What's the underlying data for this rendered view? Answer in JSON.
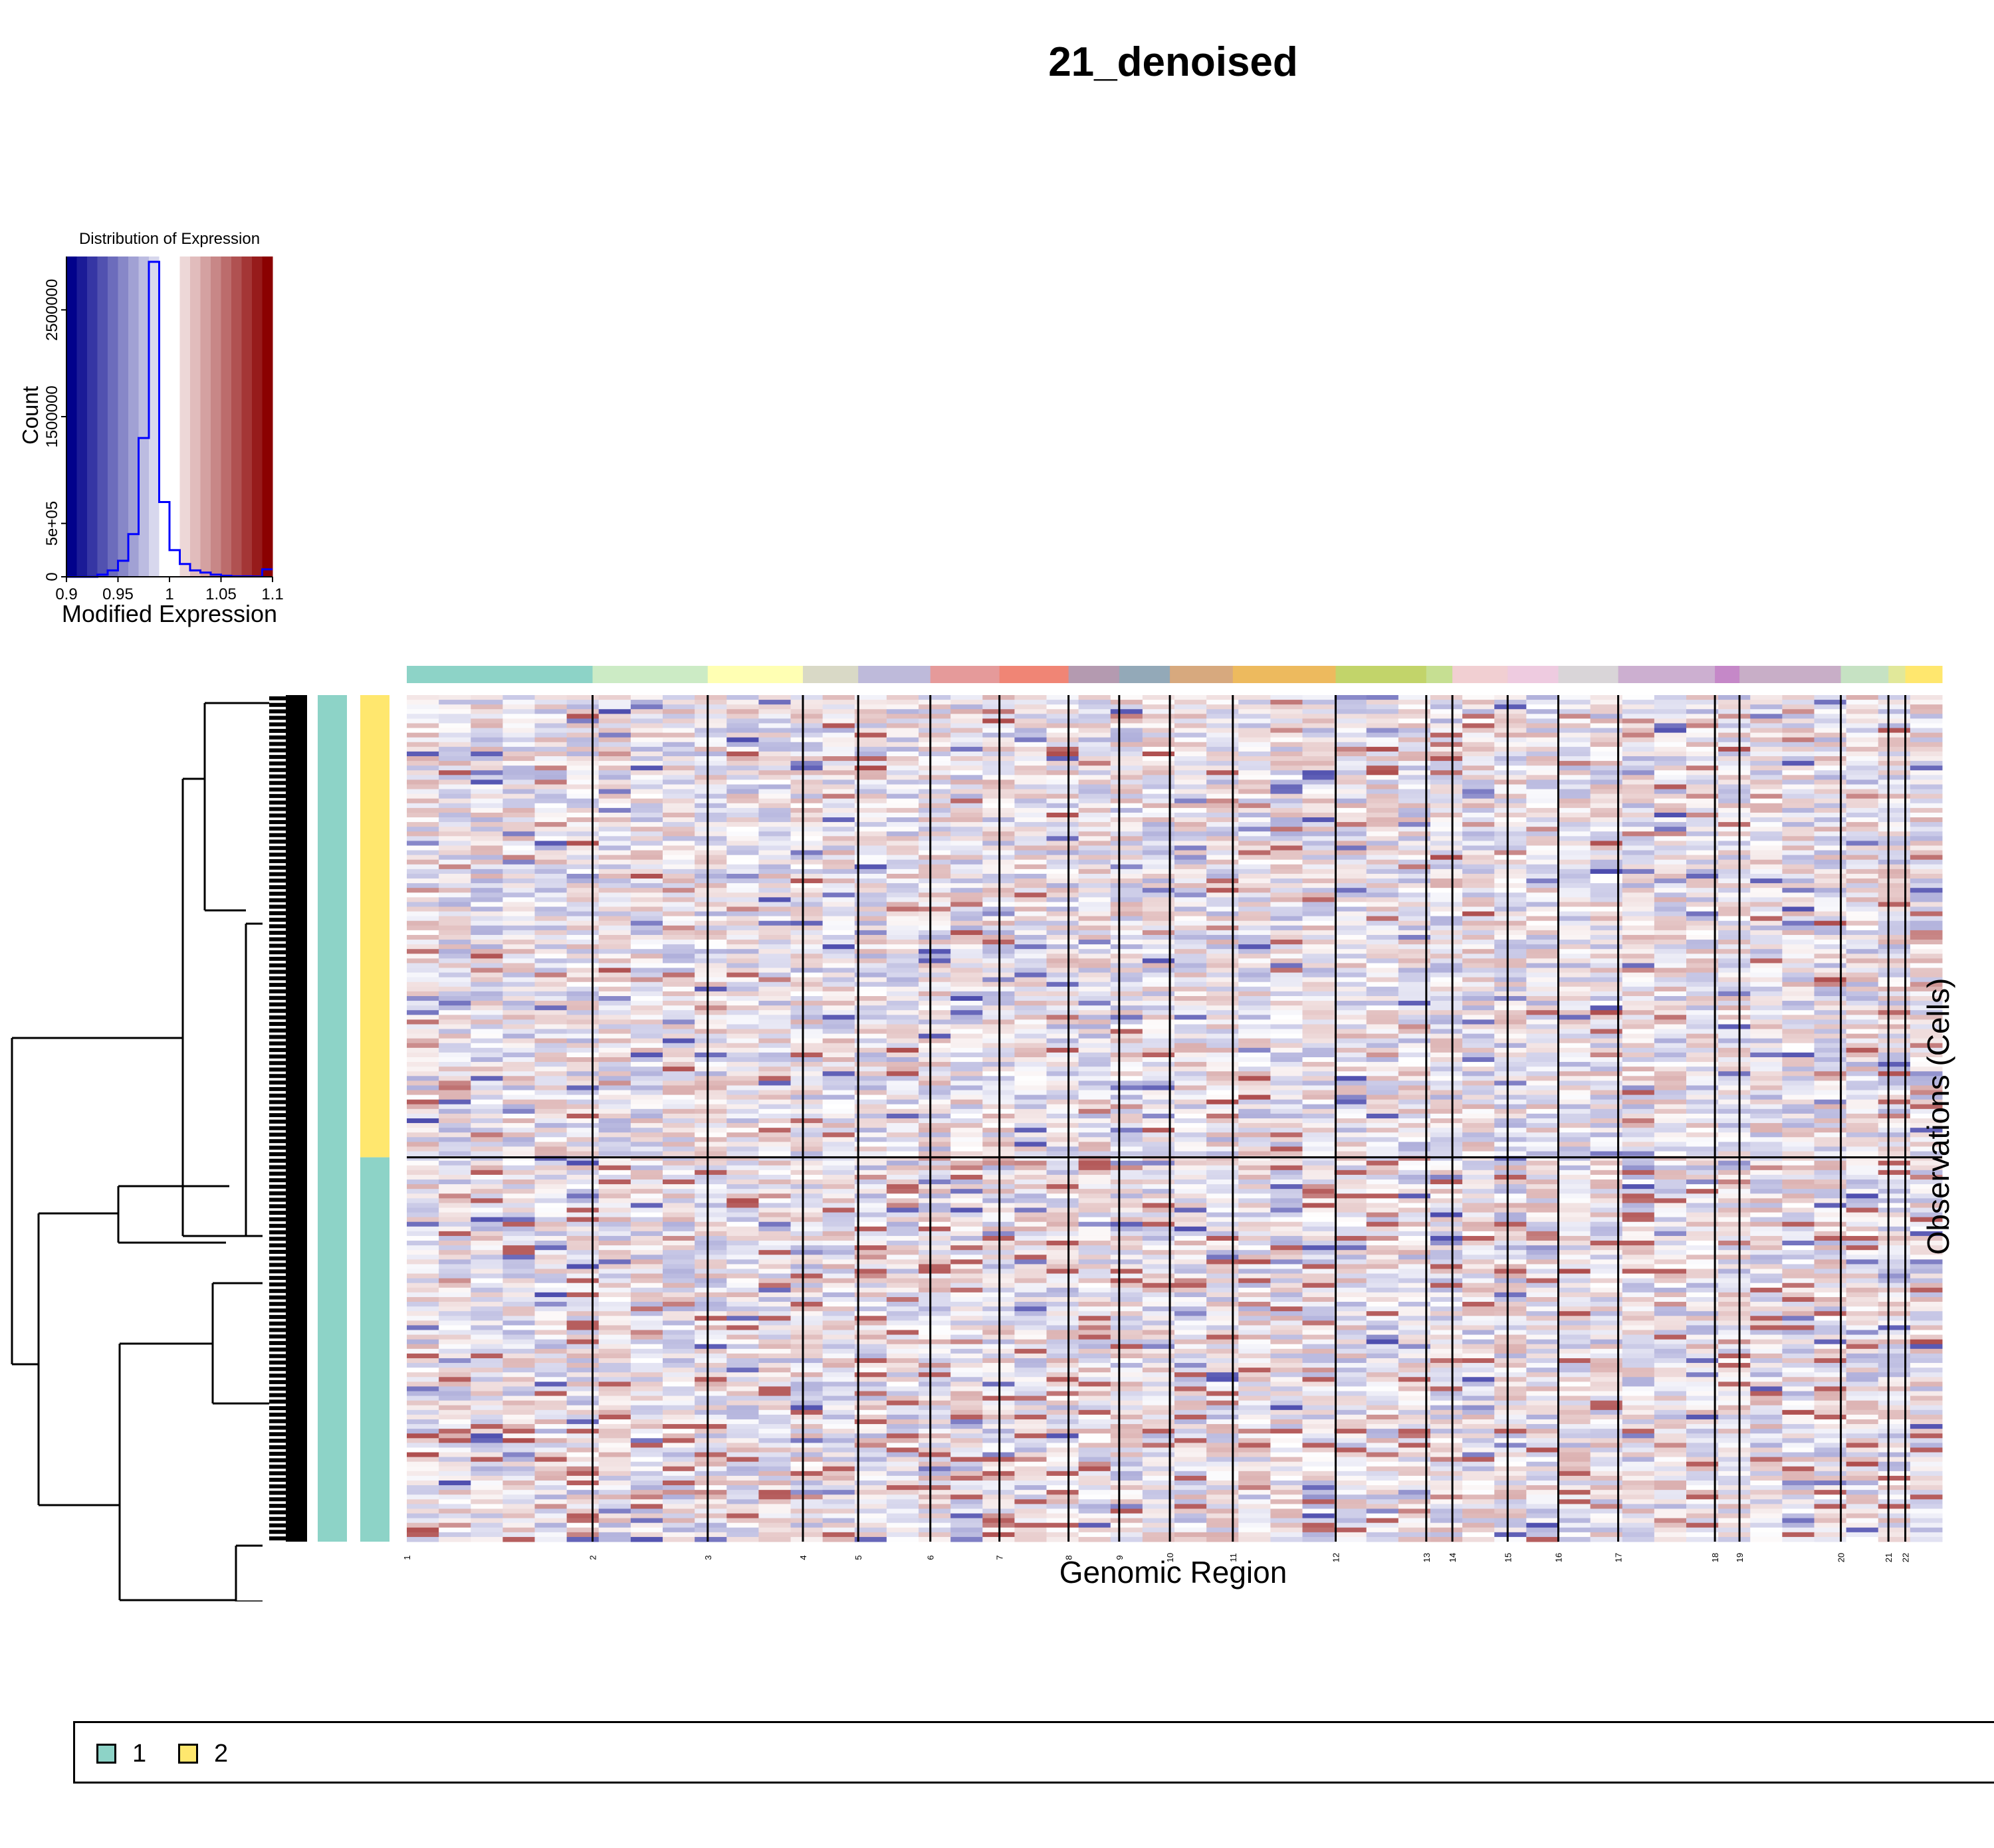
{
  "title": "21_denoised",
  "colors": {
    "cell_group_1": "#8DD3C7",
    "cell_group_2": "#FFE76E",
    "heat_low": "#00008B",
    "heat_mid": "#FFFFFF",
    "heat_high": "#8B0000",
    "histogram_line": "#0000FF"
  },
  "chart_data": [
    {
      "type": "histogram",
      "title": "Distribution of Expression",
      "xlabel": "Modified Expression",
      "ylabel": "Count",
      "xlim": [
        0.9,
        1.1
      ],
      "ylim": [
        0,
        3000000
      ],
      "x_ticks": [
        "0.9",
        "0.95",
        "1",
        "1.05",
        "1.1"
      ],
      "y_ticks": [
        "0",
        "5e+05",
        "1500000",
        "2500000"
      ],
      "y_tick_values": [
        0,
        500000,
        1500000,
        2500000
      ],
      "color_bands": 20,
      "bin_width": 0.01,
      "bin_start": 0.9,
      "counts": [
        0,
        0,
        0,
        20000,
        60000,
        150000,
        400000,
        1300000,
        2950000,
        700000,
        250000,
        120000,
        60000,
        40000,
        20000,
        10000,
        5000,
        5000,
        3000,
        70000
      ]
    },
    {
      "type": "heatmap",
      "xlabel": "Genomic Region",
      "ylabel": "Observations (Cells)",
      "color_scale": [
        0.9,
        1.0,
        1.1
      ],
      "chromosomes": [
        {
          "label": "1",
          "start": 0.0,
          "end": 0.121,
          "color": "#8DD3C7"
        },
        {
          "label": "2",
          "start": 0.121,
          "end": 0.196,
          "color": "#CCEBC5"
        },
        {
          "label": "3",
          "start": 0.196,
          "end": 0.258,
          "color": "#FFFFB3"
        },
        {
          "label": "4",
          "start": 0.258,
          "end": 0.294,
          "color": "#D9D9C6"
        },
        {
          "label": "5",
          "start": 0.294,
          "end": 0.341,
          "color": "#BEBADA"
        },
        {
          "label": "6",
          "start": 0.341,
          "end": 0.386,
          "color": "#E59A9A"
        },
        {
          "label": "7",
          "start": 0.386,
          "end": 0.431,
          "color": "#F08575"
        },
        {
          "label": "8",
          "start": 0.431,
          "end": 0.464,
          "color": "#B49AB0"
        },
        {
          "label": "9",
          "start": 0.464,
          "end": 0.497,
          "color": "#93A9B8"
        },
        {
          "label": "10",
          "start": 0.497,
          "end": 0.538,
          "color": "#D7A97E"
        },
        {
          "label": "11",
          "start": 0.538,
          "end": 0.605,
          "color": "#EDBA5E"
        },
        {
          "label": "12",
          "start": 0.605,
          "end": 0.664,
          "color": "#C2D46A"
        },
        {
          "label": "13",
          "start": 0.664,
          "end": 0.681,
          "color": "#C6DF92"
        },
        {
          "label": "14",
          "start": 0.681,
          "end": 0.717,
          "color": "#F1CFD2"
        },
        {
          "label": "15",
          "start": 0.717,
          "end": 0.75,
          "color": "#EECBE0"
        },
        {
          "label": "16",
          "start": 0.75,
          "end": 0.789,
          "color": "#D9D5D8"
        },
        {
          "label": "17",
          "start": 0.789,
          "end": 0.852,
          "color": "#CCAFD0"
        },
        {
          "label": "18",
          "start": 0.852,
          "end": 0.868,
          "color": "#C588C8"
        },
        {
          "label": "19",
          "start": 0.868,
          "end": 0.934,
          "color": "#C8AEC7"
        },
        {
          "label": "20",
          "start": 0.934,
          "end": 0.965,
          "color": "#C6E2C3"
        },
        {
          "label": "21",
          "start": 0.965,
          "end": 0.976,
          "color": "#E1E89A"
        },
        {
          "label": "22",
          "start": 0.976,
          "end": 1.0,
          "color": "#FFE76E"
        }
      ],
      "row_groups": [
        {
          "name": "2",
          "fraction": 0.546
        },
        {
          "name": "1",
          "fraction": 0.454
        }
      ]
    }
  ],
  "legend": {
    "items": [
      {
        "label": "1",
        "color": "#8DD3C7"
      },
      {
        "label": "2",
        "color": "#FFE76E"
      }
    ]
  }
}
